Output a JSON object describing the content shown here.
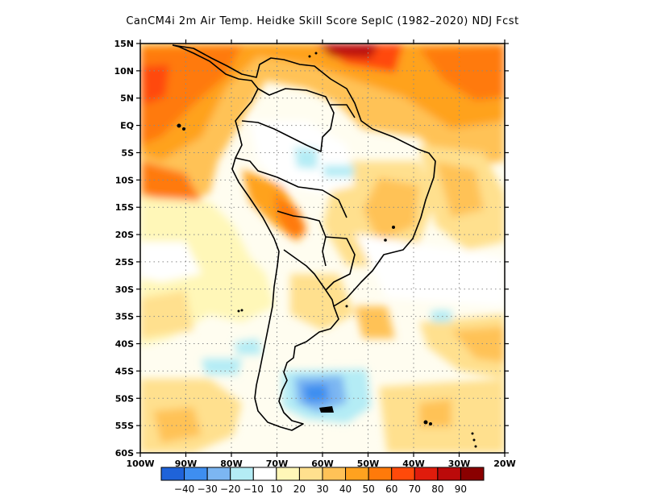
{
  "title": "CanCM4i  2m Air Temp. Heidke Skill Score SepIC (1982–2020) NDJ Fcst",
  "map": {
    "lat_labels": [
      "15N",
      "10N",
      "5N",
      "EQ",
      "5S",
      "10S",
      "15S",
      "20S",
      "25S",
      "30S",
      "35S",
      "40S",
      "45S",
      "50S",
      "55S",
      "60S"
    ],
    "lon_labels": [
      "100W",
      "90W",
      "80W",
      "70W",
      "60W",
      "50W",
      "40W",
      "30W",
      "20W"
    ],
    "grid": true
  },
  "colorbar": {
    "colors": [
      "#1f63d9",
      "#3e8ef0",
      "#7cb6f2",
      "#b4ecf5",
      "#ffffff",
      "#fff7b8",
      "#ffe08e",
      "#ffc257",
      "#ffa21f",
      "#ff7a0a",
      "#ff4a0a",
      "#e01c0c",
      "#bb0a0a",
      "#8a0000"
    ],
    "labels": [
      "−40",
      "−30",
      "−20",
      "−10",
      "10",
      "20",
      "30",
      "40",
      "50",
      "60",
      "70",
      "80",
      "90"
    ]
  }
}
